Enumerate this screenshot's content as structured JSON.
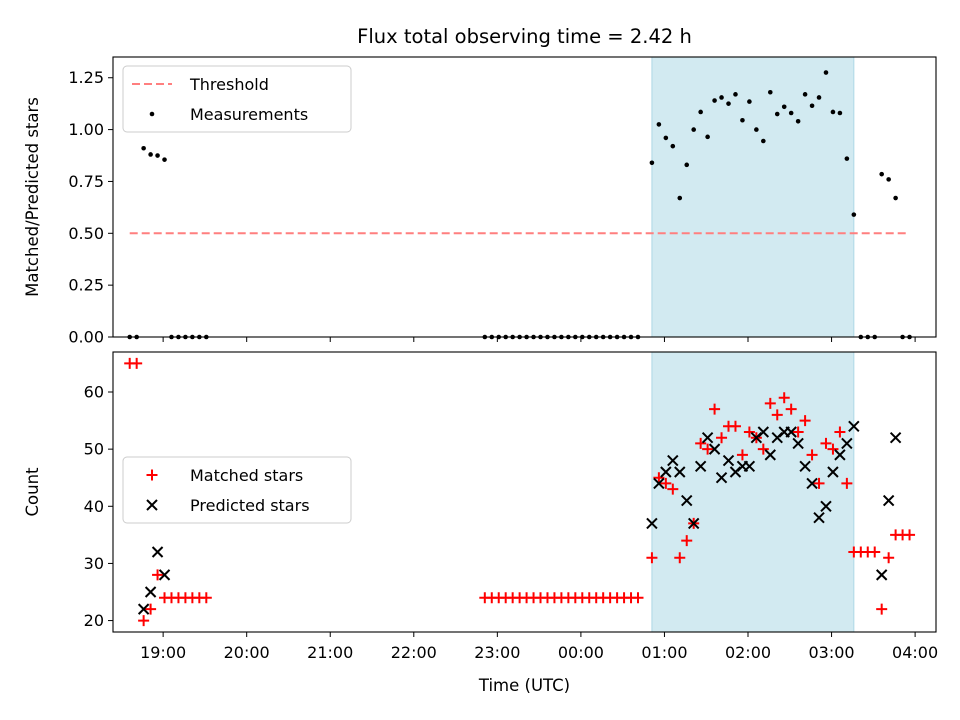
{
  "title": "Flux total observing time = 2.42 h",
  "xlabel": "Time (UTC)",
  "x_ticks": [
    "19:00",
    "20:00",
    "21:00",
    "22:00",
    "23:00",
    "00:00",
    "01:00",
    "02:00",
    "03:00",
    "04:00"
  ],
  "colors": {
    "threshold": "#ff7f7f",
    "matched": "#ff0000",
    "predicted": "#000000",
    "measurement": "#000000",
    "highlight": "#add8e6"
  },
  "chart_data": [
    {
      "type": "scatter",
      "ylabel": "Matched/Predicted stars",
      "ylim": [
        0,
        1.35
      ],
      "xlim": [
        "18:24",
        "04:15"
      ],
      "y_ticks": [
        "0.00",
        "0.25",
        "0.50",
        "0.75",
        "1.00",
        "1.25"
      ],
      "y_tick_values": [
        0,
        0.25,
        0.5,
        0.75,
        1.0,
        1.25
      ],
      "highlight": [
        "00:51",
        "03:16"
      ],
      "legend_placement": "upper left",
      "threshold": {
        "name": "Threshold",
        "value": 0.5,
        "x": [
          "18:36",
          "03:56"
        ]
      },
      "series": [
        {
          "name": "Measurements",
          "points": [
            [
              "18:36",
              0
            ],
            [
              "18:41",
              0
            ],
            [
              "18:46",
              0.91
            ],
            [
              "18:51",
              0.88
            ],
            [
              "18:56",
              0.875
            ],
            [
              "19:01",
              0.855
            ],
            [
              "19:06",
              0
            ],
            [
              "19:11",
              0
            ],
            [
              "19:16",
              0
            ],
            [
              "19:21",
              0
            ],
            [
              "19:26",
              0
            ],
            [
              "19:31",
              0
            ],
            [
              "22:51",
              0
            ],
            [
              "22:56",
              0
            ],
            [
              "23:01",
              0
            ],
            [
              "23:06",
              0
            ],
            [
              "23:11",
              0
            ],
            [
              "23:16",
              0
            ],
            [
              "23:21",
              0
            ],
            [
              "23:26",
              0
            ],
            [
              "23:31",
              0
            ],
            [
              "23:36",
              0
            ],
            [
              "23:41",
              0
            ],
            [
              "23:46",
              0
            ],
            [
              "23:51",
              0
            ],
            [
              "23:56",
              0
            ],
            [
              "00:01",
              0
            ],
            [
              "00:06",
              0
            ],
            [
              "00:11",
              0
            ],
            [
              "00:16",
              0
            ],
            [
              "00:21",
              0
            ],
            [
              "00:26",
              0
            ],
            [
              "00:31",
              0
            ],
            [
              "00:36",
              0
            ],
            [
              "00:41",
              0
            ],
            [
              "00:51",
              0.84
            ],
            [
              "00:56",
              1.025
            ],
            [
              "01:01",
              0.96
            ],
            [
              "01:06",
              0.92
            ],
            [
              "01:11",
              0.67
            ],
            [
              "01:16",
              0.83
            ],
            [
              "01:21",
              1.0
            ],
            [
              "01:26",
              1.085
            ],
            [
              "01:31",
              0.965
            ],
            [
              "01:36",
              1.14
            ],
            [
              "01:41",
              1.155
            ],
            [
              "01:46",
              1.125
            ],
            [
              "01:51",
              1.17
            ],
            [
              "01:56",
              1.045
            ],
            [
              "02:01",
              1.135
            ],
            [
              "02:06",
              1.0
            ],
            [
              "02:11",
              0.945
            ],
            [
              "02:16",
              1.18
            ],
            [
              "02:21",
              1.075
            ],
            [
              "02:26",
              1.11
            ],
            [
              "02:31",
              1.08
            ],
            [
              "02:36",
              1.04
            ],
            [
              "02:41",
              1.17
            ],
            [
              "02:46",
              1.115
            ],
            [
              "02:51",
              1.155
            ],
            [
              "02:56",
              1.275
            ],
            [
              "03:01",
              1.085
            ],
            [
              "03:06",
              1.08
            ],
            [
              "03:11",
              0.86
            ],
            [
              "03:16",
              0.59
            ],
            [
              "03:21",
              0
            ],
            [
              "03:26",
              0
            ],
            [
              "03:31",
              0
            ],
            [
              "03:36",
              0.785
            ],
            [
              "03:41",
              0.76
            ],
            [
              "03:46",
              0.67
            ],
            [
              "03:51",
              0
            ],
            [
              "03:56",
              0
            ]
          ]
        }
      ]
    },
    {
      "type": "scatter",
      "ylabel": "Count",
      "ylim": [
        18,
        67
      ],
      "xlim": [
        "18:24",
        "04:15"
      ],
      "y_ticks": [
        "20",
        "30",
        "40",
        "50",
        "60"
      ],
      "y_tick_values": [
        20,
        30,
        40,
        50,
        60
      ],
      "highlight": [
        "00:51",
        "03:16"
      ],
      "legend_placement": "center left",
      "series": [
        {
          "name": "Matched stars",
          "marker": "+",
          "points": [
            [
              "18:36",
              65
            ],
            [
              "18:41",
              65
            ],
            [
              "18:46",
              20
            ],
            [
              "18:51",
              22
            ],
            [
              "18:56",
              28
            ],
            [
              "19:01",
              24
            ],
            [
              "19:06",
              24
            ],
            [
              "19:11",
              24
            ],
            [
              "19:16",
              24
            ],
            [
              "19:21",
              24
            ],
            [
              "19:26",
              24
            ],
            [
              "19:31",
              24
            ],
            [
              "22:51",
              24
            ],
            [
              "22:56",
              24
            ],
            [
              "23:01",
              24
            ],
            [
              "23:06",
              24
            ],
            [
              "23:11",
              24
            ],
            [
              "23:16",
              24
            ],
            [
              "23:21",
              24
            ],
            [
              "23:26",
              24
            ],
            [
              "23:31",
              24
            ],
            [
              "23:36",
              24
            ],
            [
              "23:41",
              24
            ],
            [
              "23:46",
              24
            ],
            [
              "23:51",
              24
            ],
            [
              "23:56",
              24
            ],
            [
              "00:01",
              24
            ],
            [
              "00:06",
              24
            ],
            [
              "00:11",
              24
            ],
            [
              "00:16",
              24
            ],
            [
              "00:21",
              24
            ],
            [
              "00:26",
              24
            ],
            [
              "00:31",
              24
            ],
            [
              "00:36",
              24
            ],
            [
              "00:41",
              24
            ],
            [
              "00:51",
              31
            ],
            [
              "00:56",
              45
            ],
            [
              "01:01",
              44
            ],
            [
              "01:06",
              43
            ],
            [
              "01:11",
              31
            ],
            [
              "01:16",
              34
            ],
            [
              "01:21",
              37
            ],
            [
              "01:26",
              51
            ],
            [
              "01:31",
              50
            ],
            [
              "01:36",
              57
            ],
            [
              "01:41",
              52
            ],
            [
              "01:46",
              54
            ],
            [
              "01:51",
              54
            ],
            [
              "01:56",
              49
            ],
            [
              "02:01",
              53
            ],
            [
              "02:06",
              52
            ],
            [
              "02:11",
              50
            ],
            [
              "02:16",
              58
            ],
            [
              "02:21",
              56
            ],
            [
              "02:26",
              59
            ],
            [
              "02:31",
              57
            ],
            [
              "02:36",
              53
            ],
            [
              "02:41",
              55
            ],
            [
              "02:46",
              49
            ],
            [
              "02:51",
              44
            ],
            [
              "02:56",
              51
            ],
            [
              "03:01",
              50
            ],
            [
              "03:06",
              53
            ],
            [
              "03:11",
              44
            ],
            [
              "03:16",
              32
            ],
            [
              "03:21",
              32
            ],
            [
              "03:26",
              32
            ],
            [
              "03:31",
              32
            ],
            [
              "03:36",
              22
            ],
            [
              "03:41",
              31
            ],
            [
              "03:46",
              35
            ],
            [
              "03:51",
              35
            ],
            [
              "03:56",
              35
            ]
          ]
        },
        {
          "name": "Predicted stars",
          "marker": "x",
          "points": [
            [
              "18:46",
              22
            ],
            [
              "18:51",
              25
            ],
            [
              "18:56",
              32
            ],
            [
              "19:01",
              28
            ],
            [
              "00:51",
              37
            ],
            [
              "00:56",
              44
            ],
            [
              "01:01",
              46
            ],
            [
              "01:06",
              48
            ],
            [
              "01:11",
              46
            ],
            [
              "01:16",
              41
            ],
            [
              "01:21",
              37
            ],
            [
              "01:26",
              47
            ],
            [
              "01:31",
              52
            ],
            [
              "01:36",
              50
            ],
            [
              "01:41",
              45
            ],
            [
              "01:46",
              48
            ],
            [
              "01:51",
              46
            ],
            [
              "01:56",
              47
            ],
            [
              "02:01",
              47
            ],
            [
              "02:06",
              52
            ],
            [
              "02:11",
              53
            ],
            [
              "02:16",
              49
            ],
            [
              "02:21",
              52
            ],
            [
              "02:26",
              53
            ],
            [
              "02:31",
              53
            ],
            [
              "02:36",
              51
            ],
            [
              "02:41",
              47
            ],
            [
              "02:46",
              44
            ],
            [
              "02:51",
              38
            ],
            [
              "02:56",
              40
            ],
            [
              "03:01",
              46
            ],
            [
              "03:06",
              49
            ],
            [
              "03:11",
              51
            ],
            [
              "03:16",
              54
            ],
            [
              "03:36",
              28
            ],
            [
              "03:41",
              41
            ],
            [
              "03:46",
              52
            ]
          ]
        }
      ]
    }
  ]
}
